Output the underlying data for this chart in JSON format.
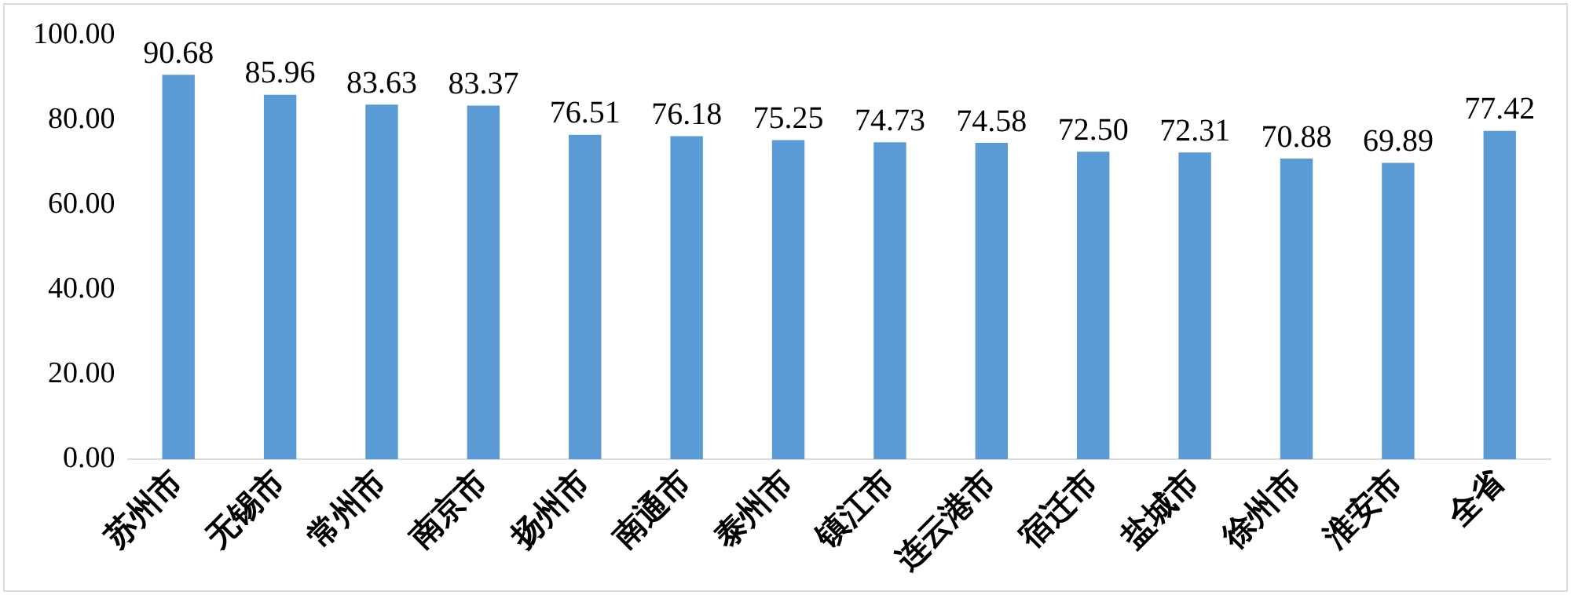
{
  "chart_data": {
    "type": "bar",
    "categories": [
      "苏州市",
      "无锡市",
      "常州市",
      "南京市",
      "扬州市",
      "南通市",
      "泰州市",
      "镇江市",
      "连云港市",
      "宿迁市",
      "盐城市",
      "徐州市",
      "淮安市",
      "全省"
    ],
    "values": [
      90.68,
      85.96,
      83.63,
      83.37,
      76.51,
      76.18,
      75.25,
      74.73,
      74.58,
      72.5,
      72.31,
      70.88,
      69.89,
      77.42
    ],
    "value_labels": [
      "90.68",
      "85.96",
      "83.63",
      "83.37",
      "76.51",
      "76.18",
      "75.25",
      "74.73",
      "74.58",
      "72.50",
      "72.31",
      "70.88",
      "69.89",
      "77.42"
    ],
    "color": "#5b9bd5",
    "ylim": [
      0,
      100
    ],
    "yticks": [
      {
        "value": 0,
        "label": "0.00"
      },
      {
        "value": 20,
        "label": "20.00"
      },
      {
        "value": 40,
        "label": "40.00"
      },
      {
        "value": 60,
        "label": "60.00"
      },
      {
        "value": 80,
        "label": "80.00"
      },
      {
        "value": 100,
        "label": "100.00"
      }
    ],
    "grid": false,
    "legend": false
  }
}
